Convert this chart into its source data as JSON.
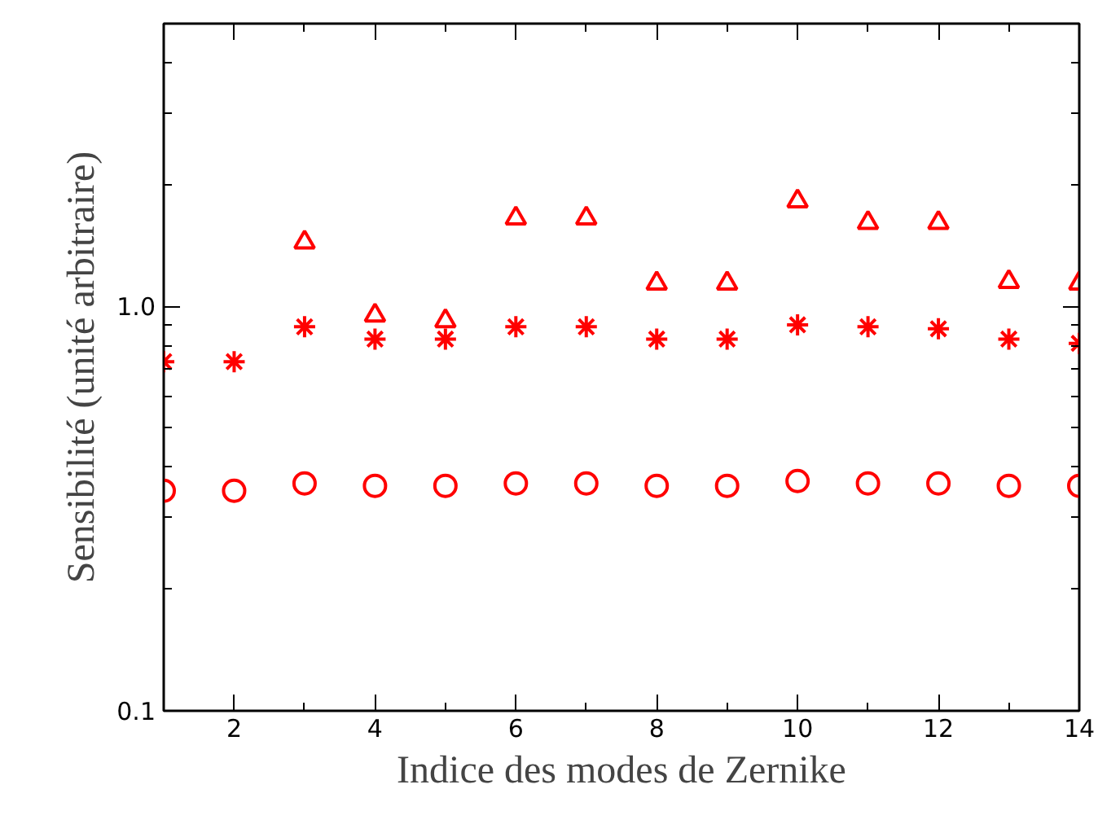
{
  "chart_data": {
    "type": "scatter",
    "xlabel": "Indice des modes de Zernike",
    "ylabel": "Sensibilité (unité arbitraire)",
    "x": [
      1,
      2,
      3,
      4,
      5,
      6,
      7,
      8,
      9,
      10,
      11,
      12,
      13,
      14
    ],
    "series": [
      {
        "color": "#ff0000",
        "marker": "triangle",
        "values": [
          null,
          null,
          1.44,
          0.95,
          0.92,
          1.65,
          1.65,
          1.14,
          1.14,
          1.82,
          1.61,
          1.61,
          1.15,
          1.14
        ]
      },
      {
        "color": "#ff0000",
        "marker": "cross",
        "values": [
          0.73,
          0.73,
          0.89,
          0.83,
          0.83,
          0.89,
          0.89,
          0.83,
          0.83,
          0.9,
          0.89,
          0.88,
          0.83,
          0.81
        ]
      },
      {
        "color": "#ff0000",
        "marker": "circle",
        "values": [
          0.35,
          0.35,
          0.365,
          0.36,
          0.36,
          0.365,
          0.365,
          0.36,
          0.36,
          0.37,
          0.365,
          0.365,
          0.36,
          0.36
        ]
      }
    ],
    "log": "y",
    "grid": false,
    "xlim": [
      1,
      14
    ],
    "ylim": [
      0.1,
      5
    ],
    "xticks": [
      {
        "value": 1,
        "label": null
      },
      2,
      {
        "value": 3,
        "label": null
      },
      4,
      {
        "value": 5,
        "label": null
      },
      6,
      {
        "value": 7,
        "label": null
      },
      8,
      {
        "value": 9,
        "label": null
      },
      10,
      {
        "value": 11,
        "label": null
      },
      12,
      {
        "value": 13,
        "label": null
      },
      14
    ],
    "yticks": [
      0.1,
      {
        "value": 0.2,
        "label": null
      },
      {
        "value": 0.3,
        "label": null
      },
      {
        "value": 0.4,
        "label": null
      },
      {
        "value": 0.5,
        "label": null
      },
      {
        "value": 0.6,
        "label": null
      },
      {
        "value": 0.7,
        "label": null
      },
      {
        "value": 0.8,
        "label": null
      },
      {
        "value": 0.9,
        "label": null
      },
      {
        "value": 1,
        "label": "1.0"
      },
      {
        "value": 2,
        "label": null
      },
      {
        "value": 3,
        "label": null
      },
      {
        "value": 4,
        "label": null
      },
      {
        "value": 5,
        "label": null
      }
    ]
  }
}
